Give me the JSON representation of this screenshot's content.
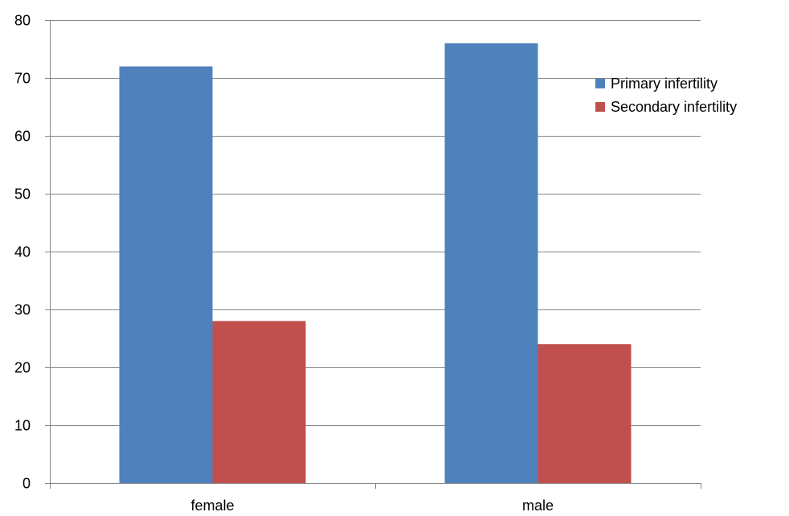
{
  "chart_data": {
    "type": "bar",
    "categories": [
      "female",
      "male"
    ],
    "series": [
      {
        "name": "Primary infertility",
        "values": [
          72,
          76
        ],
        "color": "#4F81BD"
      },
      {
        "name": "Secondary infertility",
        "values": [
          28,
          24
        ],
        "color": "#C0504D"
      }
    ],
    "ylim": [
      0,
      80
    ],
    "yticks": [
      0,
      10,
      20,
      30,
      40,
      50,
      60,
      70,
      80
    ],
    "grid": true,
    "legend_position": "right",
    "gridline_color": "#868686",
    "axis_color": "#868686"
  }
}
